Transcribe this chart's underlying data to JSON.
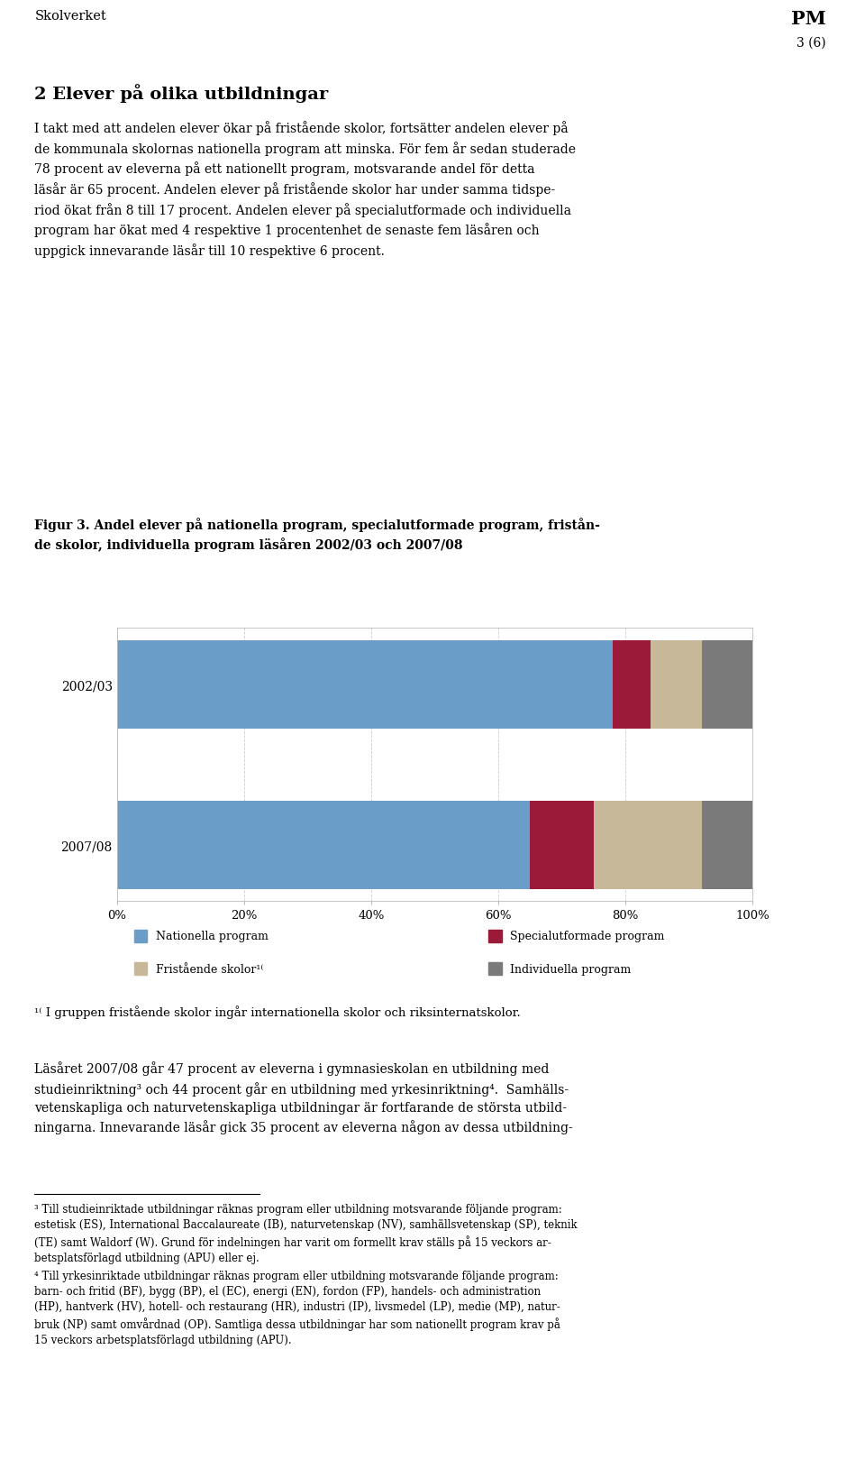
{
  "categories": [
    "2002/03",
    "2007/08"
  ],
  "series": {
    "Nationella program": [
      78,
      65
    ],
    "Specialutformade program": [
      6,
      10
    ],
    "Fristående skolor": [
      8,
      17
    ],
    "Individuella program": [
      8,
      8
    ]
  },
  "colors": {
    "Nationella program": "#6A9DC8",
    "Specialutformade program": "#9B1A3A",
    "Fristående skolor": "#C8B89A",
    "Individuella program": "#7A7A7A"
  },
  "xlim": [
    0,
    100
  ],
  "xticks": [
    0,
    20,
    40,
    60,
    80,
    100
  ],
  "xtick_labels": [
    "0%",
    "20%",
    "40%",
    "60%",
    "80%",
    "100%"
  ],
  "background_color": "#FFFFFF"
}
